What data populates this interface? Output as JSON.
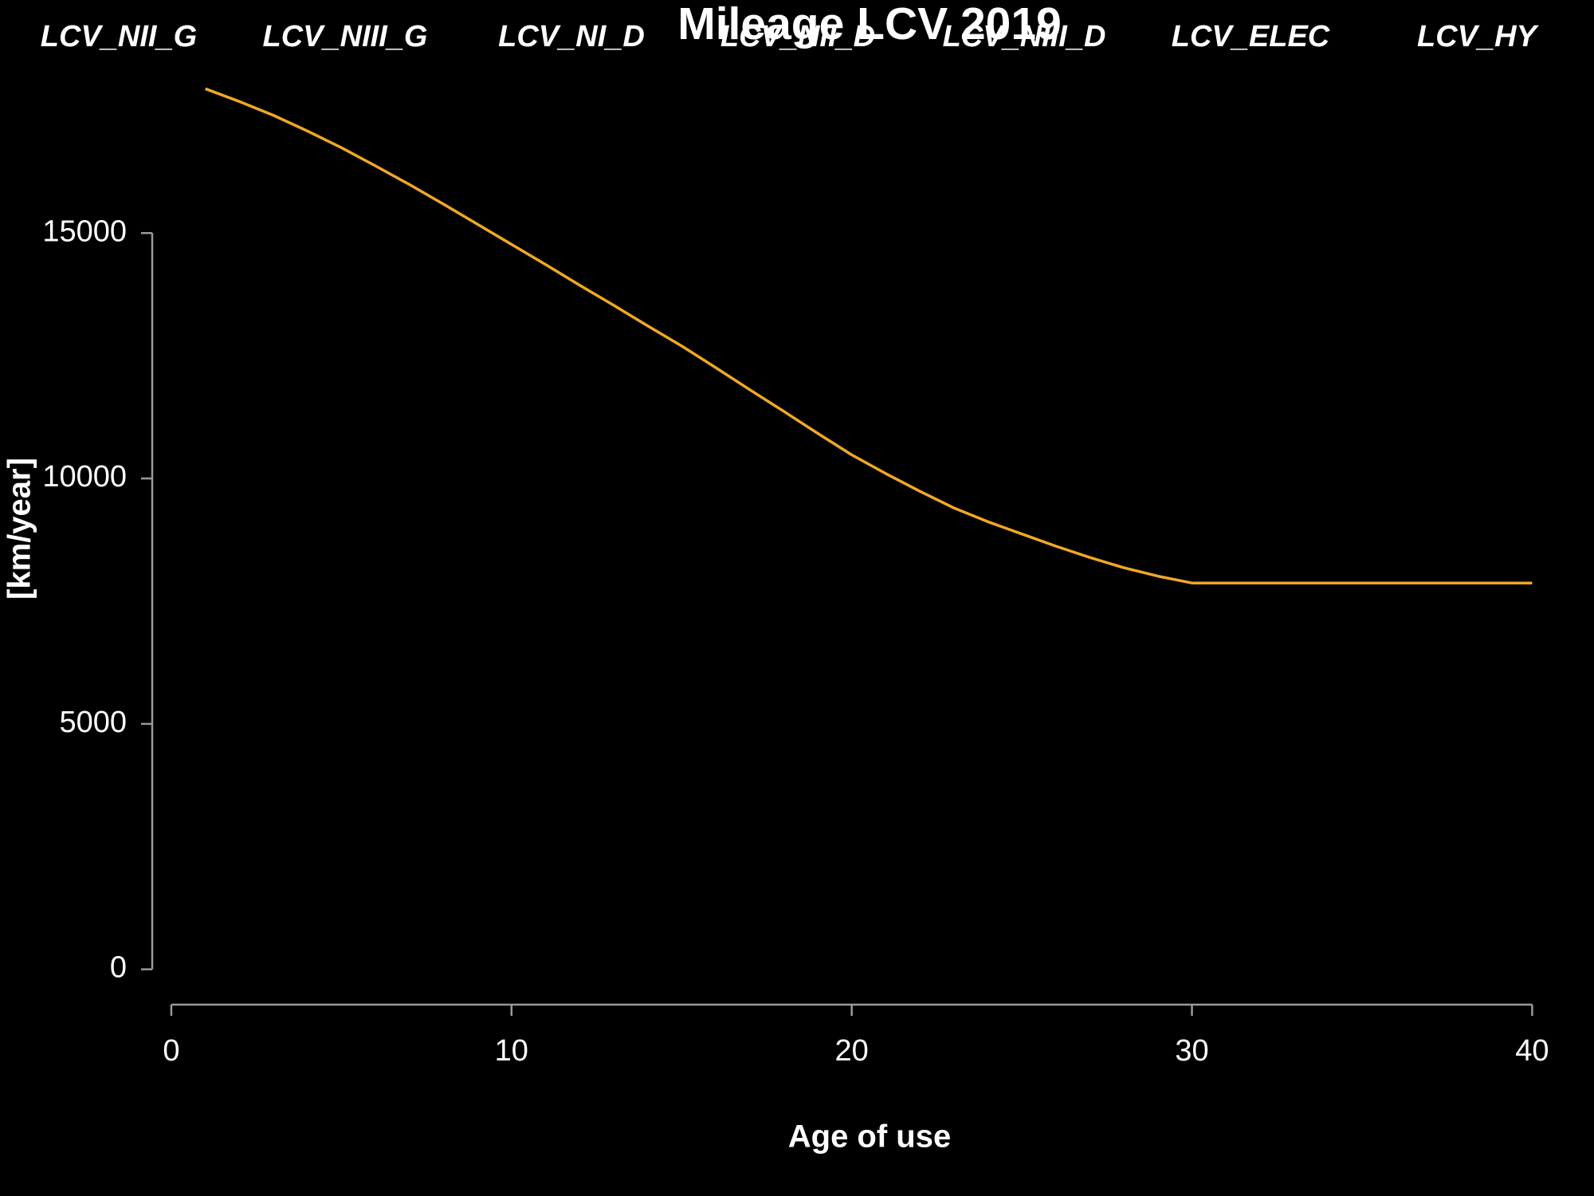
{
  "chart_data": {
    "type": "line",
    "title": "Mileage LCV 2019",
    "annotations": [
      "LCV_NII_G",
      "LCV_NIII_G",
      "LCV_NI_D",
      "LCV_NII_D",
      "LCV_NIII_D",
      "LCV_ELEC",
      "LCV_HY"
    ],
    "x_label": "Age of use",
    "y_label": "[km/year]",
    "x": [
      1,
      2,
      3,
      4,
      5,
      6,
      7,
      8,
      9,
      10,
      11,
      12,
      13,
      14,
      15,
      16,
      17,
      18,
      19,
      20,
      21,
      22,
      23,
      24,
      25,
      26,
      27,
      28,
      29,
      30,
      31,
      32,
      33,
      34,
      35,
      36,
      37,
      38,
      39,
      40
    ],
    "series": [
      {
        "color": "#f0a828",
        "values": [
          17940,
          17680,
          17400,
          17080,
          16740,
          16370,
          15990,
          15590,
          15180,
          14770,
          14360,
          13940,
          13530,
          13110,
          12700,
          12260,
          11810,
          11370,
          10920,
          10480,
          10100,
          9740,
          9400,
          9120,
          8870,
          8620,
          8390,
          8180,
          8010,
          7870,
          7870,
          7870,
          7870,
          7870,
          7870,
          7870,
          7870,
          7870,
          7870,
          7870
        ]
      }
    ],
    "xlim": [
      -0.56,
      41.56
    ],
    "xticks": [
      0,
      10,
      20,
      30,
      40
    ],
    "ylim": [
      -720,
      18660
    ],
    "yticks": [
      0,
      5000,
      10000,
      15000
    ]
  }
}
